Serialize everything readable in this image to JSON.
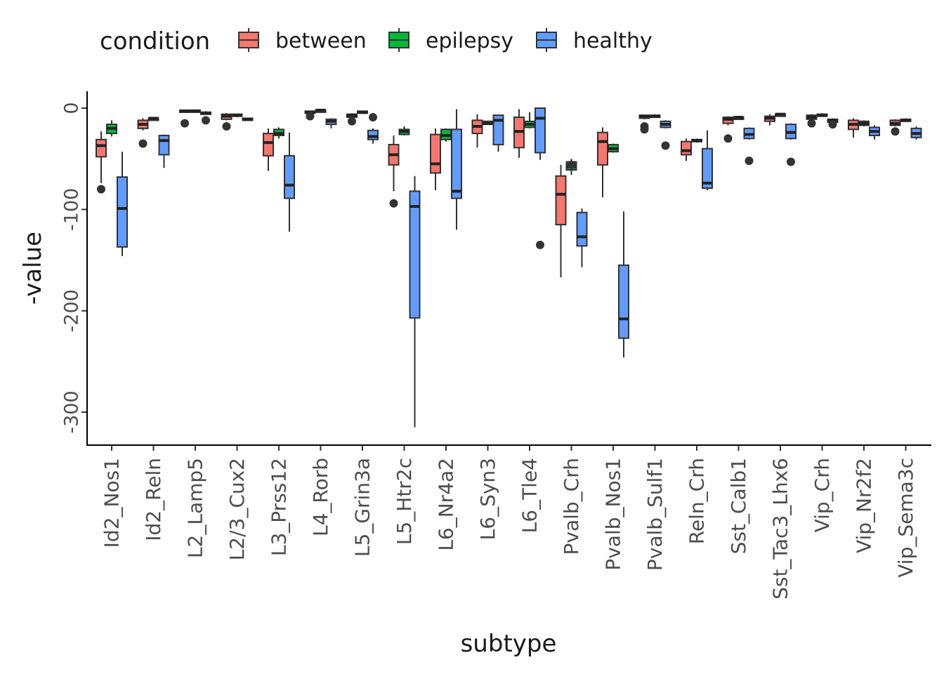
{
  "chart_data": {
    "type": "boxplot",
    "xlabel": "subtype",
    "ylabel": "-value",
    "ylim": [
      -320,
      15
    ],
    "yticks": [
      0,
      -100,
      -200,
      -300
    ],
    "legend": {
      "title": "condition",
      "position": "top-left",
      "entries": [
        "between",
        "epilepsy",
        "healthy"
      ]
    },
    "colors": {
      "between": "#F8766D",
      "epilepsy": "#00BA38",
      "healthy": "#619CFF"
    },
    "categories": [
      "Id2_Nos1",
      "Id2_Reln",
      "L2_Lamp5",
      "L2/3_Cux2",
      "L3_Prss12",
      "L4_Rorb",
      "L5_Grin3a",
      "L5_Htr2c",
      "L6_Nr4a2",
      "L6_Syn3",
      "L6_Tle4",
      "Pvalb_Crh",
      "Pvalb_Nos1",
      "Pvalb_Sulf1",
      "Reln_Crh",
      "Sst_Calb1",
      "Sst_Tac3_Lhx6",
      "Vip_Crh",
      "Vip_Nr2f2",
      "Vip_Sema3c"
    ],
    "boxes": [
      {
        "category": "Id2_Nos1",
        "condition": "between",
        "q1": -48,
        "median": -37,
        "q3": -31,
        "lo": -74,
        "hi": -23,
        "outliers": [
          -80
        ]
      },
      {
        "category": "Id2_Nos1",
        "condition": "epilepsy",
        "q1": -25,
        "median": -20,
        "q3": -16,
        "lo": -28,
        "hi": -12,
        "outliers": []
      },
      {
        "category": "Id2_Nos1",
        "condition": "healthy",
        "q1": -137,
        "median": -99,
        "q3": -68,
        "lo": -146,
        "hi": -43,
        "outliers": []
      },
      {
        "category": "Id2_Reln",
        "condition": "between",
        "q1": -20,
        "median": -16,
        "q3": -12,
        "lo": -22,
        "hi": -10,
        "outliers": [
          -35
        ]
      },
      {
        "category": "Id2_Reln",
        "condition": "epilepsy",
        "q1": -11,
        "median": -10,
        "q3": -10,
        "lo": -11,
        "hi": -9,
        "outliers": []
      },
      {
        "category": "Id2_Reln",
        "condition": "healthy",
        "q1": -46,
        "median": -32,
        "q3": -27,
        "lo": -59,
        "hi": -26,
        "outliers": []
      },
      {
        "category": "L2_Lamp5",
        "condition": "between",
        "q1": -4,
        "median": -3,
        "q3": -2,
        "lo": -4,
        "hi": -2,
        "outliers": [
          -15
        ]
      },
      {
        "category": "L2_Lamp5",
        "condition": "epilepsy",
        "q1": -4,
        "median": -3,
        "q3": -2,
        "lo": -4,
        "hi": -2,
        "outliers": []
      },
      {
        "category": "L2_Lamp5",
        "condition": "healthy",
        "q1": -6,
        "median": -5,
        "q3": -4,
        "lo": -6,
        "hi": -3,
        "outliers": [
          -12
        ]
      },
      {
        "category": "L2/3_Cux2",
        "condition": "between",
        "q1": -11,
        "median": -8,
        "q3": -6,
        "lo": -12,
        "hi": -5,
        "outliers": [
          -18
        ]
      },
      {
        "category": "L2/3_Cux2",
        "condition": "epilepsy",
        "q1": -8,
        "median": -7,
        "q3": -6,
        "lo": -9,
        "hi": -6,
        "outliers": []
      },
      {
        "category": "L2/3_Cux2",
        "condition": "healthy",
        "q1": -12,
        "median": -11,
        "q3": -10,
        "lo": -12,
        "hi": -10,
        "outliers": []
      },
      {
        "category": "L3_Prss12",
        "condition": "between",
        "q1": -47,
        "median": -34,
        "q3": -25,
        "lo": -62,
        "hi": -20,
        "outliers": []
      },
      {
        "category": "L3_Prss12",
        "condition": "epilepsy",
        "q1": -27,
        "median": -25,
        "q3": -21,
        "lo": -30,
        "hi": -19,
        "outliers": []
      },
      {
        "category": "L3_Prss12",
        "condition": "healthy",
        "q1": -89,
        "median": -76,
        "q3": -47,
        "lo": -122,
        "hi": -24,
        "outliers": []
      },
      {
        "category": "L4_Rorb",
        "condition": "between",
        "q1": -5,
        "median": -4,
        "q3": -3,
        "lo": -6,
        "hi": -3,
        "outliers": [
          -8
        ]
      },
      {
        "category": "L4_Rorb",
        "condition": "epilepsy",
        "q1": -3,
        "median": -2,
        "q3": -2,
        "lo": -3,
        "hi": -2,
        "outliers": []
      },
      {
        "category": "L4_Rorb",
        "condition": "healthy",
        "q1": -16,
        "median": -13,
        "q3": -11,
        "lo": -20,
        "hi": -10,
        "outliers": []
      },
      {
        "category": "L5_Grin3a",
        "condition": "between",
        "q1": -9,
        "median": -7,
        "q3": -6,
        "lo": -10,
        "hi": -5,
        "outliers": [
          -13
        ]
      },
      {
        "category": "L5_Grin3a",
        "condition": "epilepsy",
        "q1": -5,
        "median": -4,
        "q3": -3,
        "lo": -5,
        "hi": -3,
        "outliers": []
      },
      {
        "category": "L5_Grin3a",
        "condition": "healthy",
        "q1": -31,
        "median": -28,
        "q3": -22,
        "lo": -35,
        "hi": -20,
        "outliers": [
          -9
        ]
      },
      {
        "category": "L5_Htr2c",
        "condition": "between",
        "q1": -56,
        "median": -46,
        "q3": -36,
        "lo": -82,
        "hi": -27,
        "outliers": [
          -94
        ]
      },
      {
        "category": "L5_Htr2c",
        "condition": "epilepsy",
        "q1": -26,
        "median": -23,
        "q3": -21,
        "lo": -27,
        "hi": -18,
        "outliers": []
      },
      {
        "category": "L5_Htr2c",
        "condition": "healthy",
        "q1": -207,
        "median": -97,
        "q3": -82,
        "lo": -315,
        "hi": -67,
        "outliers": []
      },
      {
        "category": "L6_Nr4a2",
        "condition": "between",
        "q1": -64,
        "median": -55,
        "q3": -26,
        "lo": -81,
        "hi": -20,
        "outliers": []
      },
      {
        "category": "L6_Nr4a2",
        "condition": "epilepsy",
        "q1": -31,
        "median": -27,
        "q3": -21,
        "lo": -33,
        "hi": -20,
        "outliers": []
      },
      {
        "category": "L6_Nr4a2",
        "condition": "healthy",
        "q1": -89,
        "median": -82,
        "q3": -21,
        "lo": -120,
        "hi": -1,
        "outliers": []
      },
      {
        "category": "L6_Syn3",
        "condition": "between",
        "q1": -25,
        "median": -18,
        "q3": -12,
        "lo": -39,
        "hi": -6,
        "outliers": []
      },
      {
        "category": "L6_Syn3",
        "condition": "epilepsy",
        "q1": -16,
        "median": -15,
        "q3": -13,
        "lo": -16,
        "hi": -13,
        "outliers": []
      },
      {
        "category": "L6_Syn3",
        "condition": "healthy",
        "q1": -36,
        "median": -12,
        "q3": -7,
        "lo": -43,
        "hi": -7,
        "outliers": []
      },
      {
        "category": "L6_Tle4",
        "condition": "between",
        "q1": -39,
        "median": -23,
        "q3": -9,
        "lo": -49,
        "hi": -1,
        "outliers": []
      },
      {
        "category": "L6_Tle4",
        "condition": "epilepsy",
        "q1": -19,
        "median": -16,
        "q3": -13,
        "lo": -20,
        "hi": -4,
        "outliers": []
      },
      {
        "category": "L6_Tle4",
        "condition": "healthy",
        "q1": -44,
        "median": -10,
        "q3": 0,
        "lo": -51,
        "hi": 0,
        "outliers": [
          -135
        ]
      },
      {
        "category": "Pvalb_Crh",
        "condition": "between",
        "q1": -115,
        "median": -85,
        "q3": -67,
        "lo": -167,
        "hi": -56,
        "outliers": []
      },
      {
        "category": "Pvalb_Crh",
        "condition": "epilepsy",
        "q1": -61,
        "median": -58,
        "q3": -53,
        "lo": -66,
        "hi": -50,
        "outliers": [
          -56
        ]
      },
      {
        "category": "Pvalb_Crh",
        "condition": "healthy",
        "q1": -136,
        "median": -127,
        "q3": -103,
        "lo": -157,
        "hi": -99,
        "outliers": []
      },
      {
        "category": "Pvalb_Nos1",
        "condition": "between",
        "q1": -56,
        "median": -33,
        "q3": -24,
        "lo": -88,
        "hi": -19,
        "outliers": []
      },
      {
        "category": "Pvalb_Nos1",
        "condition": "epilepsy",
        "q1": -43,
        "median": -40,
        "q3": -36,
        "lo": -44,
        "hi": -35,
        "outliers": []
      },
      {
        "category": "Pvalb_Nos1",
        "condition": "healthy",
        "q1": -227,
        "median": -208,
        "q3": -155,
        "lo": -246,
        "hi": -102,
        "outliers": []
      },
      {
        "category": "Pvalb_Sulf1",
        "condition": "between",
        "q1": -10,
        "median": -8,
        "q3": -7,
        "lo": -11,
        "hi": -7,
        "outliers": [
          -18,
          -21
        ]
      },
      {
        "category": "Pvalb_Sulf1",
        "condition": "epilepsy",
        "q1": -8,
        "median": -8,
        "q3": -7,
        "lo": -8,
        "hi": -6,
        "outliers": []
      },
      {
        "category": "Pvalb_Sulf1",
        "condition": "healthy",
        "q1": -19,
        "median": -16,
        "q3": -13,
        "lo": -20,
        "hi": -12,
        "outliers": [
          -37
        ]
      },
      {
        "category": "Reln_Crh",
        "condition": "between",
        "q1": -46,
        "median": -42,
        "q3": -33,
        "lo": -52,
        "hi": -30,
        "outliers": []
      },
      {
        "category": "Reln_Crh",
        "condition": "epilepsy",
        "q1": -33,
        "median": -32,
        "q3": -31,
        "lo": -34,
        "hi": -30,
        "outliers": []
      },
      {
        "category": "Reln_Crh",
        "condition": "healthy",
        "q1": -79,
        "median": -74,
        "q3": -40,
        "lo": -81,
        "hi": -22,
        "outliers": []
      },
      {
        "category": "Sst_Calb1",
        "condition": "between",
        "q1": -15,
        "median": -11,
        "q3": -9,
        "lo": -17,
        "hi": -8,
        "outliers": [
          -30
        ]
      },
      {
        "category": "Sst_Calb1",
        "condition": "epilepsy",
        "q1": -10,
        "median": -9,
        "q3": -9,
        "lo": -10,
        "hi": -9,
        "outliers": []
      },
      {
        "category": "Sst_Calb1",
        "condition": "healthy",
        "q1": -30,
        "median": -26,
        "q3": -20,
        "lo": -31,
        "hi": -19,
        "outliers": [
          -52
        ]
      },
      {
        "category": "Sst_Tac3_Lhx6",
        "condition": "between",
        "q1": -13,
        "median": -10,
        "q3": -8,
        "lo": -17,
        "hi": -6,
        "outliers": []
      },
      {
        "category": "Sst_Tac3_Lhx6",
        "condition": "epilepsy",
        "q1": -7,
        "median": -6,
        "q3": -6,
        "lo": -8,
        "hi": -5,
        "outliers": []
      },
      {
        "category": "Sst_Tac3_Lhx6",
        "condition": "healthy",
        "q1": -30,
        "median": -24,
        "q3": -16,
        "lo": -31,
        "hi": -15,
        "outliers": [
          -53
        ]
      },
      {
        "category": "Vip_Crh",
        "condition": "between",
        "q1": -11,
        "median": -9,
        "q3": -7,
        "lo": -12,
        "hi": -6,
        "outliers": [
          -15
        ]
      },
      {
        "category": "Vip_Crh",
        "condition": "epilepsy",
        "q1": -8,
        "median": -7,
        "q3": -6,
        "lo": -8,
        "hi": -5,
        "outliers": []
      },
      {
        "category": "Vip_Crh",
        "condition": "healthy",
        "q1": -14,
        "median": -12,
        "q3": -11,
        "lo": -16,
        "hi": -10,
        "outliers": [
          -16
        ]
      },
      {
        "category": "Vip_Nr2f2",
        "condition": "between",
        "q1": -21,
        "median": -16,
        "q3": -12,
        "lo": -29,
        "hi": -10,
        "outliers": []
      },
      {
        "category": "Vip_Nr2f2",
        "condition": "epilepsy",
        "q1": -17,
        "median": -15,
        "q3": -13,
        "lo": -18,
        "hi": -12,
        "outliers": []
      },
      {
        "category": "Vip_Nr2f2",
        "condition": "healthy",
        "q1": -27,
        "median": -23,
        "q3": -19,
        "lo": -31,
        "hi": -17,
        "outliers": []
      },
      {
        "category": "Vip_Sema3c",
        "condition": "between",
        "q1": -17,
        "median": -15,
        "q3": -12,
        "lo": -18,
        "hi": -11,
        "outliers": [
          -23
        ]
      },
      {
        "category": "Vip_Sema3c",
        "condition": "epilepsy",
        "q1": -13,
        "median": -12,
        "q3": -11,
        "lo": -13,
        "hi": -10,
        "outliers": []
      },
      {
        "category": "Vip_Sema3c",
        "condition": "healthy",
        "q1": -29,
        "median": -25,
        "q3": -20,
        "lo": -31,
        "hi": -18,
        "outliers": []
      }
    ]
  }
}
